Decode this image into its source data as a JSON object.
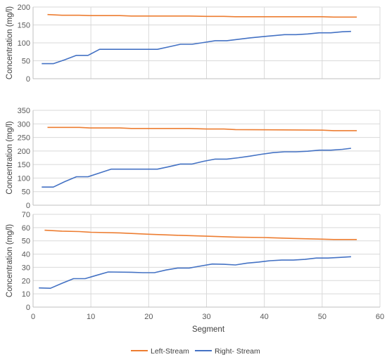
{
  "chart_data": {
    "type": "line",
    "xlabel": "Segment",
    "xlim": [
      0,
      60
    ],
    "xticks": [
      0,
      10,
      20,
      30,
      40,
      50,
      60
    ],
    "grid": true,
    "legend_position": "bottom",
    "legend": [
      "Left-Stream",
      "Right- Stream"
    ],
    "colors": {
      "left": "#ED7D31",
      "right": "#4472C4"
    },
    "panels": [
      {
        "ylabel": "Concentration (mg/l)",
        "ylim": [
          0,
          200
        ],
        "yticks": [
          0,
          50,
          100,
          150,
          200
        ],
        "series": [
          {
            "name": "Left-Stream",
            "x": [
              2.5,
              5,
              8,
              10,
              15,
              17,
              25,
              27,
              30,
              33,
              35,
              50,
              52,
              56
            ],
            "y": [
              179,
              177,
              177,
              176,
              176,
              175,
              175,
              175,
              174,
              174,
              173,
              173,
              172,
              172
            ]
          },
          {
            "name": "Right- Stream",
            "x": [
              1.5,
              3.5,
              5.5,
              7.5,
              9.5,
              11.5,
              19.5,
              21.5,
              23.5,
              25.5,
              27.5,
              29.5,
              31.5,
              33.5,
              35.5,
              37.5,
              39.5,
              41.5,
              43.5,
              45.5,
              47.5,
              49.5,
              51.5,
              53.5,
              55
            ],
            "y": [
              42,
              42,
              53,
              65,
              65,
              82,
              82,
              82,
              89,
              96,
              96,
              101,
              106,
              106,
              110,
              114,
              117,
              120,
              123,
              123,
              125,
              128,
              128,
              131,
              132
            ]
          }
        ]
      },
      {
        "ylabel": "Concentration (mg/l)",
        "ylim": [
          0,
          350
        ],
        "yticks": [
          0,
          50,
          100,
          150,
          200,
          250,
          300,
          350
        ],
        "series": [
          {
            "name": "Left-Stream",
            "x": [
              2.5,
              5,
              8,
              10,
              15,
              17,
              25,
              27,
              30,
              33,
              35,
              50,
              52,
              56
            ],
            "y": [
              287,
              287,
              287,
              285,
              285,
              283,
              283,
              283,
              281,
              281,
              279,
              277,
              275,
              275
            ]
          },
          {
            "name": "Right- Stream",
            "x": [
              1.5,
              3.5,
              5.5,
              7.5,
              9.5,
              11.5,
              13.5,
              21.5,
              23.5,
              25.5,
              27.5,
              29.5,
              31.5,
              33.5,
              35.5,
              37.5,
              39.5,
              41.5,
              43.5,
              45.5,
              47.5,
              49.5,
              51.5,
              53.5,
              55
            ],
            "y": [
              67,
              67,
              87,
              105,
              105,
              119,
              133,
              133,
              142,
              152,
              152,
              162,
              170,
              170,
              175,
              181,
              188,
              194,
              197,
              197,
              199,
              203,
              203,
              206,
              210
            ]
          }
        ]
      },
      {
        "ylabel": "Concentration (mg/l)",
        "ylim": [
          0,
          70
        ],
        "yticks": [
          0,
          10,
          20,
          30,
          40,
          50,
          60,
          70
        ],
        "series": [
          {
            "name": "Left-Stream",
            "x": [
              2,
              5,
              8,
              10,
              15,
              20,
              25,
              30,
              35,
              40,
              45,
              50,
              52,
              56
            ],
            "y": [
              58,
              57.3,
              57,
              56.5,
              56,
              55,
              54.2,
              53.5,
              52.8,
              52.5,
              51.8,
              51.3,
              51,
              51
            ]
          },
          {
            "name": "Right- Stream",
            "x": [
              1,
              3,
              5,
              7,
              9,
              11,
              13,
              17,
              19,
              21,
              23,
              25,
              27,
              29,
              31,
              33,
              35,
              37,
              39,
              41,
              43,
              45,
              47,
              49,
              51,
              53,
              55
            ],
            "y": [
              14.5,
              14.2,
              18,
              21.5,
              21.5,
              24,
              26.5,
              26.3,
              26,
              26,
              28,
              29.5,
              29.5,
              31,
              32.5,
              32.3,
              31.8,
              33.2,
              34,
              35,
              35.5,
              35.5,
              36,
              37,
              37,
              37.5,
              38
            ]
          }
        ]
      }
    ]
  }
}
